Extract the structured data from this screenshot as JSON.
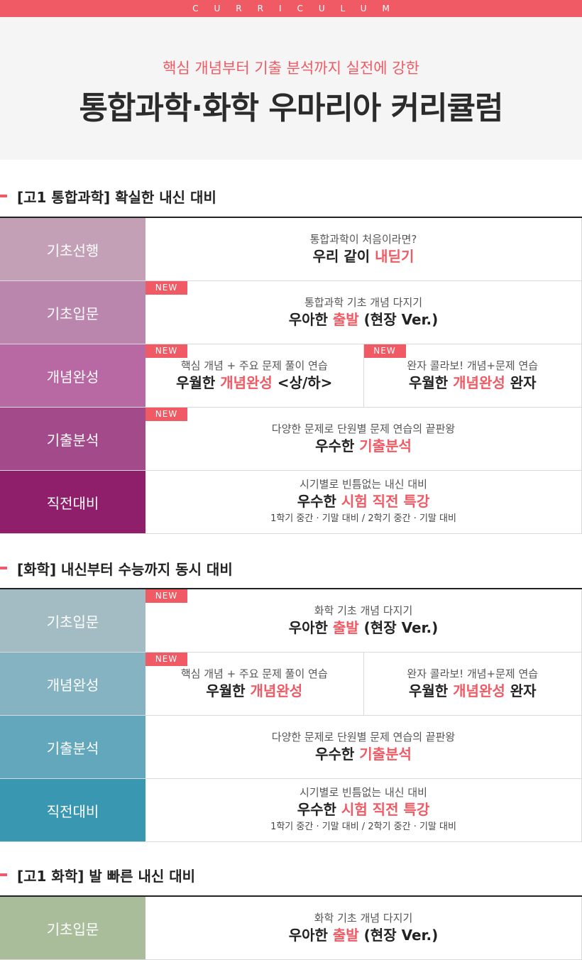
{
  "topbar": {
    "text": "CURRICULUM"
  },
  "hero": {
    "subtitle": "핵심 개념부터 기출 분석까지 실전에 강한",
    "title": "통합과학·화학 우마리아 커리큘럼"
  },
  "badge_text": "NEW",
  "colors": {
    "accent": "#f05a64"
  },
  "sections": [
    {
      "title": "[고1 통합과학] 확실한 내신 대비",
      "rows": [
        {
          "label": "기초선행",
          "color": "#c4a0b6",
          "cells": [
            {
              "new": false,
              "line1": "통합과학이 처음이라면?",
              "line2a": "우리 같이 ",
              "line2b": "내딛기",
              "line2c": "",
              "line3": ""
            }
          ]
        },
        {
          "label": "기초입문",
          "color": "#bb86ad",
          "cells": [
            {
              "new": true,
              "line1": "통합과학 기초 개념 다지기",
              "line2a": "우아한 ",
              "line2b": "출발",
              "line2c": " (현장 Ver.)",
              "line3": ""
            }
          ]
        },
        {
          "label": "개념완성",
          "color": "#b868a2",
          "cells": [
            {
              "new": true,
              "line1": "핵심 개념 + 주요 문제 풀이 연습",
              "line2a": "우월한 ",
              "line2b": "개념완성",
              "line2c": " <상/하>",
              "line3": ""
            },
            {
              "new": true,
              "line1": "완자 콜라보! 개념+문제 연습",
              "line2a": "우월한 ",
              "line2b": "개념완성",
              "line2c": " 완자",
              "line3": ""
            }
          ]
        },
        {
          "label": "기출분석",
          "color": "#a34a8a",
          "cells": [
            {
              "new": true,
              "line1": "다양한 문제로 단원별 문제 연습의 끝판왕",
              "line2a": "우수한 ",
              "line2b": "기출분석",
              "line2c": "",
              "line3": ""
            }
          ]
        },
        {
          "label": "직전대비",
          "color": "#8f1f6b",
          "cells": [
            {
              "new": false,
              "line1": "시기별로 빈틈없는 내신 대비",
              "line2a": "우수한 ",
              "line2b": "시험 직전 특강",
              "line2c": "",
              "line3": "1학기 중간 · 기말 대비 / 2학기 중간 · 기말 대비"
            }
          ]
        }
      ]
    },
    {
      "title": "[화학] 내신부터 수능까지 동시 대비",
      "rows": [
        {
          "label": "기초입문",
          "color": "#a3bcc4",
          "cells": [
            {
              "new": true,
              "line1": "화학 기초 개념 다지기",
              "line2a": "우아한 ",
              "line2b": "출발",
              "line2c": " (현장 Ver.)",
              "line3": ""
            }
          ]
        },
        {
          "label": "개념완성",
          "color": "#86b3c1",
          "cells": [
            {
              "new": true,
              "line1": "핵심 개념 + 주요 문제 풀이 연습",
              "line2a": "우월한 ",
              "line2b": "개념완성",
              "line2c": "",
              "line3": ""
            },
            {
              "new": false,
              "line1": "완자 콜라보! 개념+문제 연습",
              "line2a": "우월한 ",
              "line2b": "개념완성",
              "line2c": " 완자",
              "line3": ""
            }
          ]
        },
        {
          "label": "기출분석",
          "color": "#62a7bb",
          "cells": [
            {
              "new": false,
              "line1": "다양한 문제로 단원별 문제 연습의 끝판왕",
              "line2a": "우수한 ",
              "line2b": "기출분석",
              "line2c": "",
              "line3": ""
            }
          ]
        },
        {
          "label": "직전대비",
          "color": "#3a97b2",
          "cells": [
            {
              "new": false,
              "line1": "시기별로 빈틈없는 내신 대비",
              "line2a": "우수한 ",
              "line2b": "시험 직전 특강",
              "line2c": "",
              "line3": "1학기 중간 · 기말 대비 / 2학기 중간 · 기말 대비"
            }
          ]
        }
      ]
    },
    {
      "title": "[고1 화학] 발 빠른 내신 대비",
      "rows": [
        {
          "label": "기초입문",
          "color": "#a9bd9b",
          "cells": [
            {
              "new": false,
              "line1": "화학 기초 개념 다지기",
              "line2a": "우아한 ",
              "line2b": "출발",
              "line2c": " (현장 Ver.)",
              "line3": ""
            }
          ]
        }
      ]
    }
  ]
}
